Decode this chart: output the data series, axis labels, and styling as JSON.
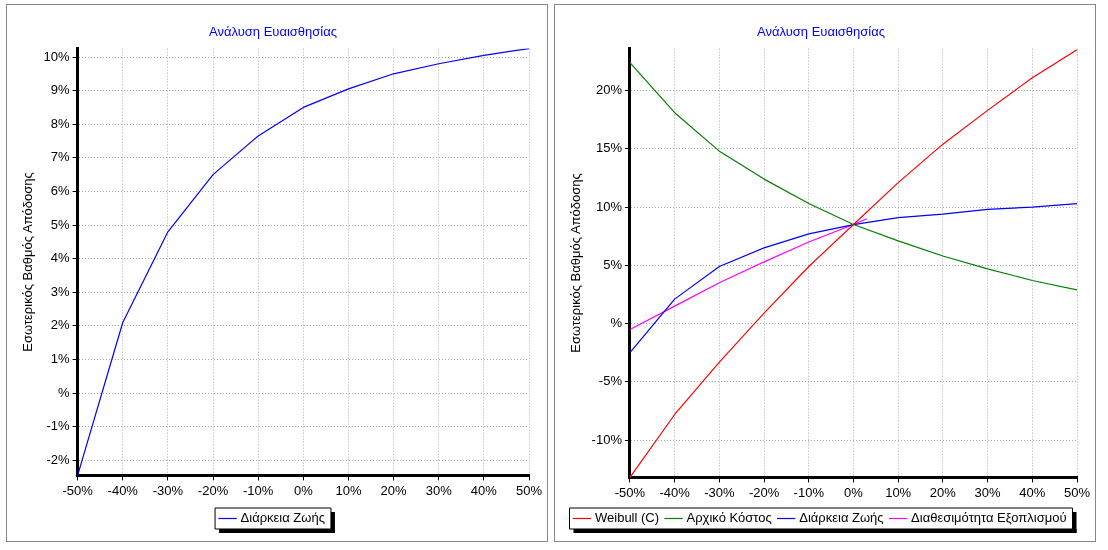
{
  "chart_data": [
    {
      "type": "line",
      "title": "Ανάλυση Ευαισθησίας",
      "ylabel": "Εσωτερικός Βαθμός Απόδοσης",
      "x": [
        -50,
        -40,
        -30,
        -20,
        -10,
        0,
        10,
        20,
        30,
        40,
        50
      ],
      "xlim": [
        -50,
        50
      ],
      "xticks": [
        {
          "value": -50,
          "label": "-50%"
        },
        {
          "value": -40,
          "label": "-40%"
        },
        {
          "value": -30,
          "label": "-30%"
        },
        {
          "value": -20,
          "label": "-20%"
        },
        {
          "value": -10,
          "label": "-10%"
        },
        {
          "value": 0,
          "label": "0%"
        },
        {
          "value": 10,
          "label": "10%"
        },
        {
          "value": 20,
          "label": "20%"
        },
        {
          "value": 30,
          "label": "30%"
        },
        {
          "value": 40,
          "label": "40%"
        },
        {
          "value": 50,
          "label": "50%"
        }
      ],
      "ylim": [
        -2.45,
        10.25
      ],
      "yticks": [
        {
          "value": -2,
          "label": "-2%"
        },
        {
          "value": -1,
          "label": "-1%"
        },
        {
          "value": 0,
          "label": "%"
        },
        {
          "value": 1,
          "label": "1%"
        },
        {
          "value": 2,
          "label": "2%"
        },
        {
          "value": 3,
          "label": "3%"
        },
        {
          "value": 4,
          "label": "4%"
        },
        {
          "value": 5,
          "label": "5%"
        },
        {
          "value": 6,
          "label": "6%"
        },
        {
          "value": 7,
          "label": "7%"
        },
        {
          "value": 8,
          "label": "8%"
        },
        {
          "value": 9,
          "label": "9%"
        },
        {
          "value": 10,
          "label": "10%"
        }
      ],
      "series": [
        {
          "name": "Διάρκεια Ζωής",
          "color": "#0000ff",
          "values": [
            -2.45,
            2.1,
            4.8,
            6.5,
            7.65,
            8.5,
            9.05,
            9.5,
            9.8,
            10.05,
            10.25
          ]
        }
      ],
      "grid": true,
      "legend": "bottom"
    },
    {
      "type": "line",
      "title": "Ανάλυση Ευαισθησίας",
      "ylabel": "Εσωτερικός Βαθμός Απόδοσης",
      "x": [
        -50,
        -40,
        -30,
        -20,
        -10,
        0,
        10,
        20,
        30,
        40,
        50
      ],
      "xlim": [
        -50,
        50
      ],
      "xticks": [
        {
          "value": -50,
          "label": "-50%"
        },
        {
          "value": -40,
          "label": "-40%"
        },
        {
          "value": -30,
          "label": "-30%"
        },
        {
          "value": -20,
          "label": "-20%"
        },
        {
          "value": -10,
          "label": "-10%"
        },
        {
          "value": 0,
          "label": "0%"
        },
        {
          "value": 10,
          "label": "10%"
        },
        {
          "value": 20,
          "label": "20%"
        },
        {
          "value": 30,
          "label": "30%"
        },
        {
          "value": 40,
          "label": "40%"
        },
        {
          "value": 50,
          "label": "50%"
        }
      ],
      "ylim": [
        -13.2,
        23.6
      ],
      "yticks": [
        {
          "value": -10,
          "label": "-10%"
        },
        {
          "value": -5,
          "label": "-5%"
        },
        {
          "value": 0,
          "label": "%"
        },
        {
          "value": 5,
          "label": "5%"
        },
        {
          "value": 10,
          "label": "10%"
        },
        {
          "value": 15,
          "label": "15%"
        },
        {
          "value": 20,
          "label": "20%"
        }
      ],
      "series": [
        {
          "name": "Weibull (C)",
          "color": "#ff0000",
          "values": [
            -13.2,
            -7.8,
            -3.3,
            0.9,
            4.9,
            8.5,
            12.1,
            15.4,
            18.3,
            21.1,
            23.5
          ]
        },
        {
          "name": "Αρχικό Κόστος",
          "color": "#008000",
          "values": [
            22.4,
            18.1,
            14.8,
            12.4,
            10.3,
            8.5,
            7.1,
            5.8,
            4.7,
            3.7,
            2.9
          ]
        },
        {
          "name": "Διάρκεια Ζωής",
          "color": "#0000ff",
          "values": [
            -2.5,
            2.1,
            4.9,
            6.5,
            7.7,
            8.5,
            9.1,
            9.4,
            9.8,
            10,
            10.3
          ]
        },
        {
          "name": "Διαθεσιμότητα Εξοπλισμού",
          "color": "#ff00ff",
          "x": [
            -50,
            -40,
            -30,
            -20,
            -10,
            0,
            3
          ],
          "values": [
            -0.5,
            1.5,
            3.5,
            5.3,
            7.0,
            8.5,
            9.0
          ]
        }
      ],
      "grid": true,
      "legend": "bottom"
    }
  ]
}
